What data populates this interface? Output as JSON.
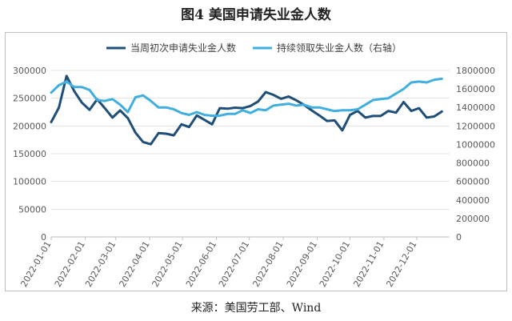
{
  "title": "图4 美国申请失业金人数",
  "source": "来源：美国劳工部、Wind",
  "chart_data": {
    "type": "line",
    "x": [
      "2022-01-01",
      "2022-01-08",
      "2022-01-15",
      "2022-01-22",
      "2022-01-29",
      "2022-02-05",
      "2022-02-12",
      "2022-02-19",
      "2022-02-26",
      "2022-03-05",
      "2022-03-12",
      "2022-03-19",
      "2022-03-26",
      "2022-04-02",
      "2022-04-09",
      "2022-04-16",
      "2022-04-23",
      "2022-04-30",
      "2022-05-07",
      "2022-05-14",
      "2022-05-21",
      "2022-05-28",
      "2022-06-04",
      "2022-06-11",
      "2022-06-18",
      "2022-06-25",
      "2022-07-02",
      "2022-07-09",
      "2022-07-16",
      "2022-07-23",
      "2022-07-30",
      "2022-08-06",
      "2022-08-13",
      "2022-08-20",
      "2022-08-27",
      "2022-09-03",
      "2022-09-10",
      "2022-09-17",
      "2022-09-24",
      "2022-10-01",
      "2022-10-08",
      "2022-10-15",
      "2022-10-22",
      "2022-10-29",
      "2022-11-05",
      "2022-11-12",
      "2022-11-19",
      "2022-11-26",
      "2022-12-03",
      "2022-12-10",
      "2022-12-17",
      "2022-12-24"
    ],
    "x_tick_labels": [
      "2022-01-01",
      "2022-02-01",
      "2022-03-01",
      "2022-04-01",
      "2022-05-01",
      "2022-06-01",
      "2022-07-01",
      "2022-08-01",
      "2022-09-01",
      "2022-10-01",
      "2022-11-01",
      "2022-12-01"
    ],
    "ylim_left": [
      0,
      300000
    ],
    "yticks_left": [
      "0",
      "50000",
      "100000",
      "150000",
      "200000",
      "250000",
      "300000"
    ],
    "ylim_right": [
      0,
      1800000
    ],
    "yticks_right": [
      "0",
      "200000",
      "400000",
      "600000",
      "800000",
      "1000000",
      "1200000",
      "1400000",
      "1600000",
      "1800000"
    ],
    "grid": true,
    "legend_position": "top",
    "series": [
      {
        "name": "当周初次申请失业金人数",
        "axis": "left",
        "color": "#1f4e79",
        "values": [
          207000,
          233000,
          290000,
          263000,
          242000,
          229000,
          248000,
          232000,
          215000,
          228000,
          214000,
          188000,
          171000,
          167000,
          187000,
          186000,
          183000,
          203000,
          198000,
          219000,
          211000,
          203000,
          232000,
          231000,
          233000,
          232000,
          236000,
          244000,
          261000,
          256000,
          249000,
          253000,
          246000,
          238000,
          228000,
          219000,
          209000,
          210000,
          192000,
          220000,
          227000,
          215000,
          218000,
          218000,
          227000,
          224000,
          243000,
          227000,
          232000,
          215000,
          217000,
          226000
        ]
      },
      {
        "name": "持续领取失业金人数（右轴）",
        "axis": "right",
        "color": "#41aee0",
        "values": [
          1560000,
          1640000,
          1680000,
          1620000,
          1620000,
          1590000,
          1480000,
          1470000,
          1490000,
          1430000,
          1350000,
          1510000,
          1530000,
          1470000,
          1400000,
          1400000,
          1380000,
          1340000,
          1320000,
          1350000,
          1320000,
          1310000,
          1310000,
          1330000,
          1330000,
          1370000,
          1340000,
          1380000,
          1370000,
          1420000,
          1430000,
          1440000,
          1420000,
          1430000,
          1400000,
          1400000,
          1380000,
          1360000,
          1370000,
          1370000,
          1380000,
          1430000,
          1480000,
          1490000,
          1500000,
          1550000,
          1600000,
          1670000,
          1680000,
          1670000,
          1700000,
          1710000
        ]
      }
    ]
  }
}
